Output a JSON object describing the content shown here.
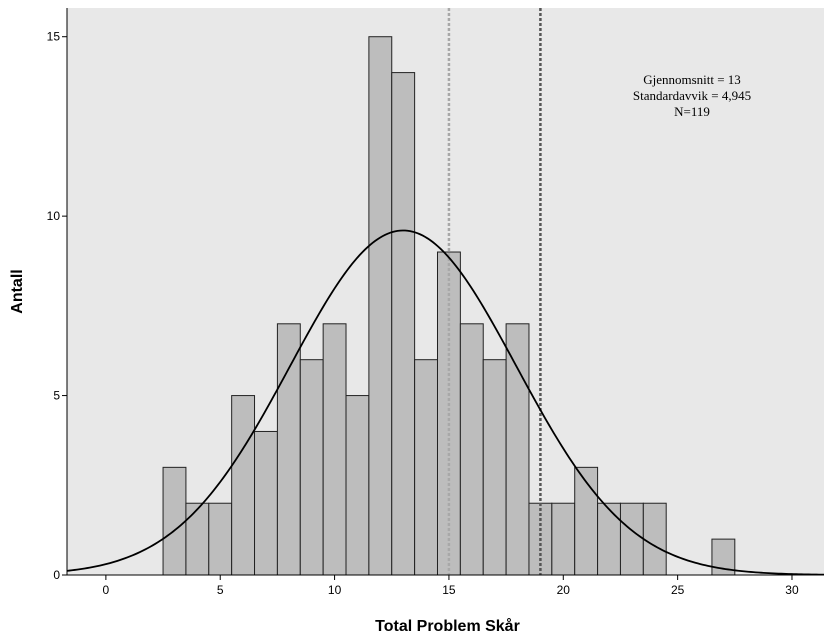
{
  "chart_data": {
    "type": "bar",
    "subtype": "histogram",
    "xlabel": "Total Problem Skår",
    "ylabel": "Antall",
    "xlim": [
      -1.7,
      31.4
    ],
    "ylim": [
      0,
      15.8
    ],
    "x_ticks": [
      0,
      5,
      10,
      15,
      20,
      25,
      30
    ],
    "y_ticks": [
      0,
      5,
      10,
      15
    ],
    "bin_width": 1,
    "bins": [
      {
        "x": 3,
        "count": 3
      },
      {
        "x": 4,
        "count": 2
      },
      {
        "x": 5,
        "count": 2
      },
      {
        "x": 6,
        "count": 5
      },
      {
        "x": 7,
        "count": 4
      },
      {
        "x": 8,
        "count": 7
      },
      {
        "x": 9,
        "count": 6
      },
      {
        "x": 10,
        "count": 7
      },
      {
        "x": 11,
        "count": 5
      },
      {
        "x": 12,
        "count": 15
      },
      {
        "x": 13,
        "count": 14
      },
      {
        "x": 14,
        "count": 6
      },
      {
        "x": 15,
        "count": 9
      },
      {
        "x": 16,
        "count": 7
      },
      {
        "x": 17,
        "count": 6
      },
      {
        "x": 18,
        "count": 7
      },
      {
        "x": 19,
        "count": 2
      },
      {
        "x": 20,
        "count": 2
      },
      {
        "x": 21,
        "count": 3
      },
      {
        "x": 22,
        "count": 2
      },
      {
        "x": 23,
        "count": 2
      },
      {
        "x": 24,
        "count": 2
      },
      {
        "x": 27,
        "count": 1
      }
    ],
    "normal_curve": {
      "mean": 13,
      "sd": 4.945,
      "n": 119
    },
    "reference_lines": [
      {
        "x": 15,
        "style": "dotted",
        "color": "#a8a8a8"
      },
      {
        "x": 19,
        "style": "dotted",
        "color": "#555555"
      }
    ],
    "stats_lines": [
      "Gjennomsnitt = 13",
      "Standardavvik = 4,945",
      "N=119"
    ],
    "colors": {
      "plot_background": "#e8e8e8",
      "bar_fill": "#bdbdbd",
      "bar_stroke": "#222222",
      "curve": "#000000"
    },
    "grid": false,
    "legend": "none"
  }
}
